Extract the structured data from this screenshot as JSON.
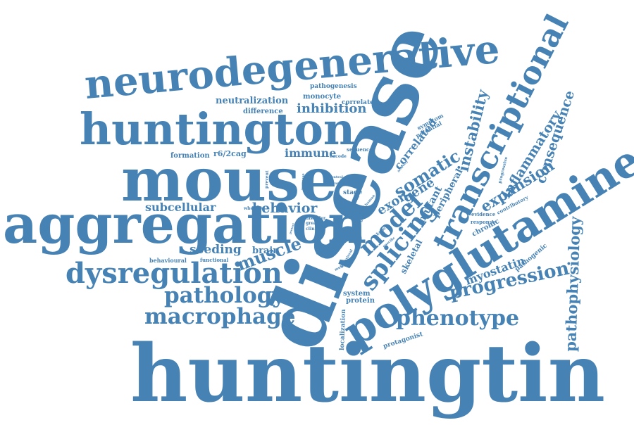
{
  "colors": {
    "word": "#4682b4",
    "background": "#ffffff"
  },
  "words": [
    "huntingtin",
    "disease",
    "mouse",
    "aggregation",
    "huntington",
    "neurodegenerative",
    "polyglutamine",
    "transcriptional",
    "dysregulation",
    "macrophage",
    "pathology",
    "phenotype",
    "progression",
    "splicing",
    "model",
    "muscle",
    "somatic",
    "instability",
    "inflammatory",
    "expansion",
    "consequence",
    "pathophysiology",
    "myostatin",
    "behavior",
    "subcellular",
    "seeding",
    "brain",
    "exon",
    "gene",
    "mutant",
    "peripheral",
    "correlated",
    "immune",
    "inhibition",
    "neutralization",
    "difference",
    "monocyte",
    "correlate",
    "pathogenesis",
    "r6/2cag",
    "formation",
    "symptom",
    "potential",
    "sequence",
    "skeletal",
    "protein",
    "system",
    "localization",
    "protagonist",
    "treatment",
    "behavioural",
    "functional",
    "chronic",
    "response",
    "evidence",
    "contributory",
    "pathogenic",
    "progressive",
    "whereas",
    "disorder",
    "greater",
    "clinical",
    "stage",
    "central",
    "atrophy",
    "encode",
    "prevent",
    "increase",
    "multiple",
    "behavioral",
    "knock",
    "specific",
    "lower",
    "activity",
    "level",
    "better",
    "protect",
    "human"
  ]
}
